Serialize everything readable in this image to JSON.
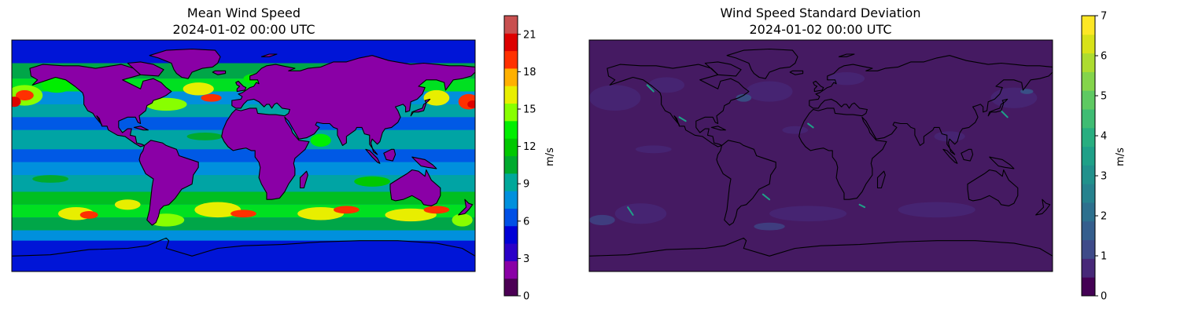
{
  "chart_data": [
    {
      "type": "heatmap",
      "title": "Mean Wind Speed",
      "subtitle": "2024-01-02 00:00 UTC",
      "colorbar": {
        "label": "m/s",
        "ticks": [
          "0",
          "3",
          "6",
          "9",
          "12",
          "15",
          "18",
          "21"
        ],
        "range": [
          0,
          22.5
        ],
        "levels": 15,
        "colors": [
          "#4c0055",
          "#8a00a6",
          "#2b00c8",
          "#0000d6",
          "#0050e6",
          "#0090dd",
          "#00a89a",
          "#00aa2e",
          "#00c800",
          "#00ee00",
          "#88ff00",
          "#e8ee00",
          "#ffb000",
          "#ff3000",
          "#dd0000",
          "#c85050"
        ]
      }
    },
    {
      "type": "heatmap",
      "title": "Wind Speed Standard Deviation",
      "subtitle": "2024-01-02 00:00 UTC",
      "colorbar": {
        "label": "m/s",
        "ticks": [
          "0",
          "1",
          "2",
          "3",
          "4",
          "5",
          "6",
          "7"
        ],
        "range": [
          0,
          7
        ],
        "levels": 14,
        "colors": [
          "#440154",
          "#472878",
          "#3e4a89",
          "#355e8d",
          "#2d708e",
          "#26828e",
          "#21918c",
          "#1fa088",
          "#28ae80",
          "#3fbc73",
          "#5ec962",
          "#84d44b",
          "#addc30",
          "#d8e219",
          "#fde725"
        ]
      }
    }
  ]
}
